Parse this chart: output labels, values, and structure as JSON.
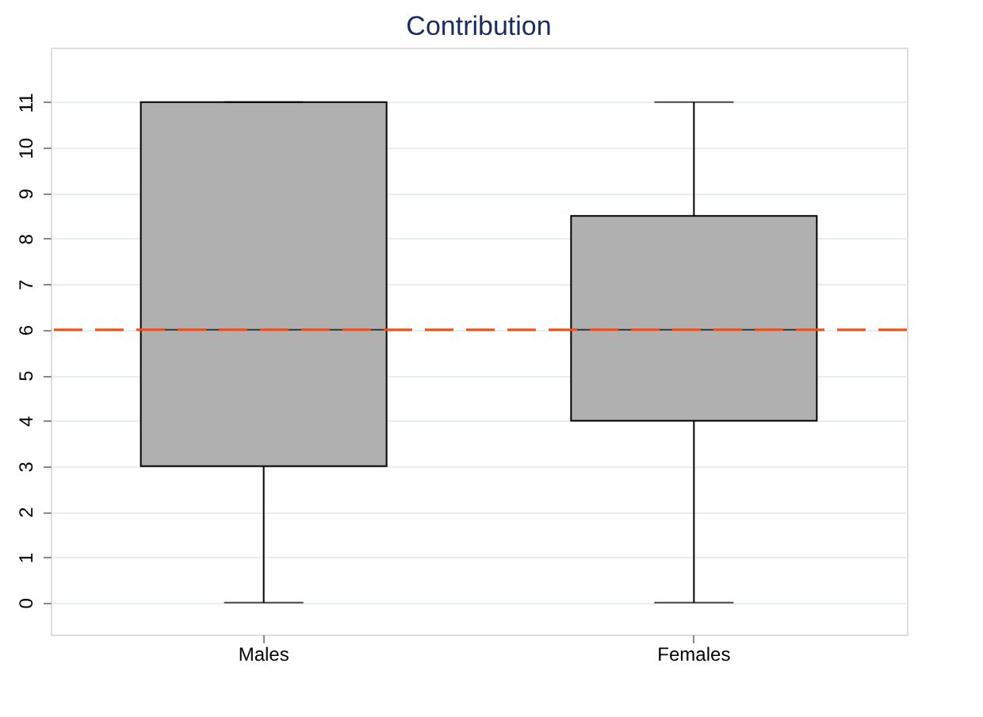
{
  "chart_data": {
    "type": "box",
    "title": "Contribution",
    "categories": [
      "Males",
      "Females"
    ],
    "series": [
      {
        "color": "#b0b0b0",
        "boxes": [
          {
            "low": 0,
            "q1": 3,
            "median": 6,
            "q3": 11,
            "high": 11
          },
          {
            "low": 0,
            "q1": 4,
            "median": 6,
            "q3": 8.5,
            "high": 11
          }
        ]
      }
    ],
    "ylim": [
      -0.7,
      12.2
    ],
    "yticks": [
      0,
      1,
      2,
      3,
      4,
      5,
      6,
      7,
      8,
      9,
      10,
      11
    ],
    "grid": "y",
    "ref_lines": [
      {
        "axis": "y",
        "value": 6,
        "color": "#f0501e",
        "line_style": "dashed"
      }
    ]
  }
}
